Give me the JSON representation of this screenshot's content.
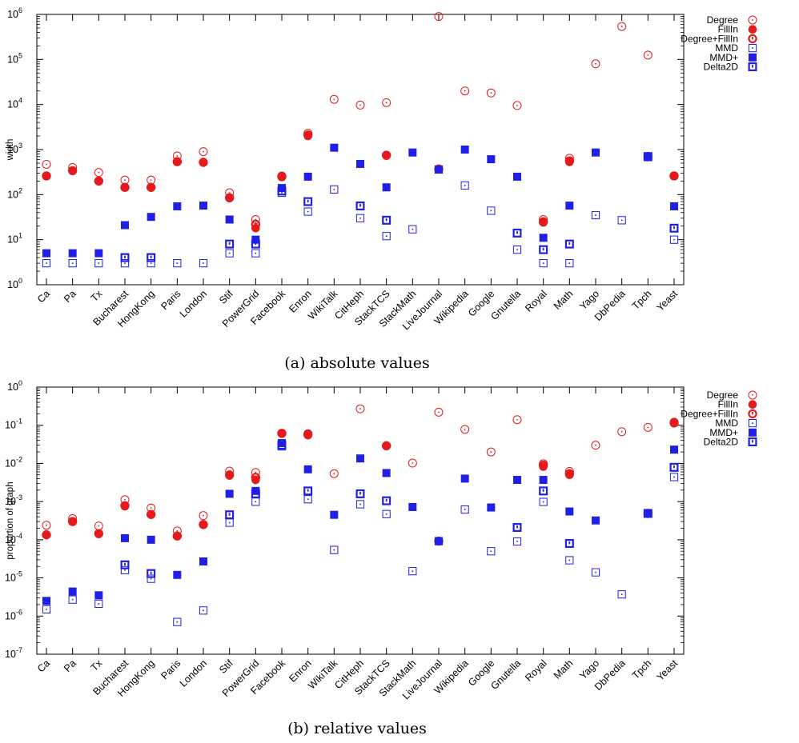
{
  "captions": {
    "a": "(a) absolute values",
    "b": "(b) relative values"
  },
  "colors": {
    "red": "#e41a1c",
    "blue": "#1f1fe6"
  },
  "markers": {
    "Degree": "open-circle-dot",
    "FillIn": "filled-circle",
    "Degree+FillIn": "open-circle-bold-dot",
    "MMD": "open-square-dot",
    "MMD+": "filled-square",
    "Delta2D": "open-square-bold-dot"
  },
  "chart_data": [
    {
      "type": "scatter",
      "title": "",
      "xlabel": "",
      "ylabel": "width",
      "yscale": "log",
      "ylim": [
        1,
        1000000
      ],
      "yticks": [
        "10^0",
        "10^1",
        "10^2",
        "10^3",
        "10^4",
        "10^5",
        "10^6"
      ],
      "legend_position": "outside-right",
      "categories": [
        "Ca",
        "Pa",
        "Tx",
        "Bucharest",
        "HongKong",
        "Paris",
        "London",
        "Stif",
        "PowerGrid",
        "Facebook",
        "Enron",
        "WikiTalk",
        "CitHeph",
        "StackTCS",
        "StackMath",
        "LiveJournal",
        "Wikipedia",
        "Google",
        "Gnutella",
        "Royal",
        "Math",
        "Yago",
        "DbPedia",
        "Tpch",
        "Yeast"
      ],
      "series": [
        {
          "name": "Degree",
          "values": [
            470,
            400,
            310,
            210,
            210,
            720,
            900,
            110,
            28,
            260,
            2300,
            13000,
            9700,
            11000,
            null,
            900000,
            20000,
            18000,
            9500,
            28,
            640,
            80000,
            540000,
            125000,
            260
          ]
        },
        {
          "name": "FillIn",
          "values": [
            260,
            340,
            200,
            145,
            145,
            540,
            520,
            85,
            18,
            250,
            2000,
            null,
            null,
            730,
            null,
            370,
            null,
            null,
            null,
            24,
            530,
            null,
            null,
            680,
            260
          ]
        },
        {
          "name": "Degree+FillIn",
          "values": [
            260,
            340,
            200,
            145,
            145,
            540,
            520,
            85,
            22,
            250,
            2100,
            null,
            null,
            750,
            null,
            370,
            null,
            null,
            null,
            25,
            560,
            null,
            null,
            700,
            260
          ]
        },
        {
          "name": "MMD",
          "values": [
            3,
            3,
            3,
            3,
            3,
            3,
            3,
            5,
            5,
            110,
            42,
            130,
            30,
            12,
            17,
            360,
            160,
            44,
            6,
            3,
            3,
            35,
            27,
            680,
            10
          ]
        },
        {
          "name": "MMD+",
          "values": [
            5,
            5,
            5,
            21,
            32,
            55,
            57,
            28,
            10,
            140,
            250,
            1100,
            480,
            145,
            860,
            360,
            1000,
            610,
            250,
            11,
            57,
            860,
            null,
            680,
            55
          ]
        },
        {
          "name": "Delta2D",
          "values": [
            null,
            null,
            null,
            4,
            4,
            null,
            null,
            8,
            8,
            120,
            70,
            null,
            56,
            27,
            null,
            null,
            null,
            null,
            14,
            6,
            8,
            null,
            null,
            700,
            18
          ]
        }
      ]
    },
    {
      "type": "scatter",
      "title": "",
      "xlabel": "",
      "ylabel": "proportion of graph",
      "yscale": "log",
      "ylim": [
        1e-07,
        1
      ],
      "yticks": [
        "10^-7",
        "10^-6",
        "10^-5",
        "10^-4",
        "10^-3",
        "10^-2",
        "10^-1",
        "10^0"
      ],
      "legend_position": "outside-right",
      "categories": [
        "Ca",
        "Pa",
        "Tx",
        "Bucharest",
        "HongKong",
        "Paris",
        "London",
        "Stif",
        "PowerGrid",
        "Facebook",
        "Enron",
        "WikiTalk",
        "CitHeph",
        "StackTCS",
        "StackMath",
        "LiveJournal",
        "Wikipedia",
        "Google",
        "Gnutella",
        "Royal",
        "Math",
        "Yago",
        "DbPedia",
        "Tpch",
        "Yeast"
      ],
      "series": [
        {
          "name": "Degree",
          "values": [
            0.00024,
            0.00036,
            0.00023,
            0.00112,
            0.00068,
            0.00017,
            0.00043,
            0.0063,
            0.0058,
            0.062,
            0.06,
            0.0054,
            0.27,
            0.029,
            0.0102,
            0.22,
            0.078,
            0.02,
            0.14,
            0.0098,
            0.0062,
            0.03,
            0.068,
            0.088,
            0.12
          ]
        },
        {
          "name": "FillIn",
          "values": [
            0.000135,
            0.0003,
            0.000145,
            0.00075,
            0.00046,
            0.000125,
            0.00025,
            0.0048,
            0.0037,
            0.061,
            0.055,
            null,
            null,
            0.029,
            null,
            9.2e-05,
            null,
            null,
            null,
            0.0082,
            0.005,
            null,
            null,
            0.00048,
            0.115
          ]
        },
        {
          "name": "Degree+FillIn",
          "values": [
            0.000135,
            0.0003,
            0.000145,
            0.00078,
            0.00046,
            0.000125,
            0.00025,
            0.005,
            0.0043,
            0.061,
            0.057,
            null,
            null,
            0.029,
            null,
            9.2e-05,
            null,
            null,
            null,
            0.009,
            0.0054,
            null,
            null,
            0.00049,
            0.115
          ]
        },
        {
          "name": "MMD",
          "values": [
            1.5e-06,
            2.7e-06,
            2.1e-06,
            1.6e-05,
            9.5e-06,
            7e-07,
            1.4e-06,
            0.00028,
            0.00099,
            0.028,
            0.00115,
            5.4e-05,
            0.00085,
            0.00047,
            1.5e-05,
            9.2e-05,
            0.00062,
            5e-05,
            9e-05,
            0.00098,
            2.9e-05,
            1.4e-05,
            3.7e-06,
            0.00048,
            0.0044
          ]
        },
        {
          "name": "MMD+",
          "values": [
            2.5e-06,
            4.4e-06,
            3.5e-06,
            0.00011,
            0.0001,
            1.2e-05,
            2.7e-05,
            0.0016,
            0.0019,
            0.034,
            0.007,
            0.00045,
            0.0135,
            0.0056,
            0.00072,
            9.2e-05,
            0.004,
            0.0007,
            0.0037,
            0.0037,
            0.00055,
            0.00032,
            null,
            0.00048,
            0.023
          ]
        },
        {
          "name": "Delta2D",
          "values": [
            null,
            null,
            null,
            2.2e-05,
            1.3e-05,
            null,
            null,
            0.00045,
            0.0016,
            0.03,
            0.0019,
            null,
            0.0016,
            0.00105,
            null,
            null,
            null,
            null,
            0.00021,
            0.0019,
            8e-05,
            null,
            null,
            0.00049,
            0.0079
          ]
        }
      ]
    }
  ]
}
